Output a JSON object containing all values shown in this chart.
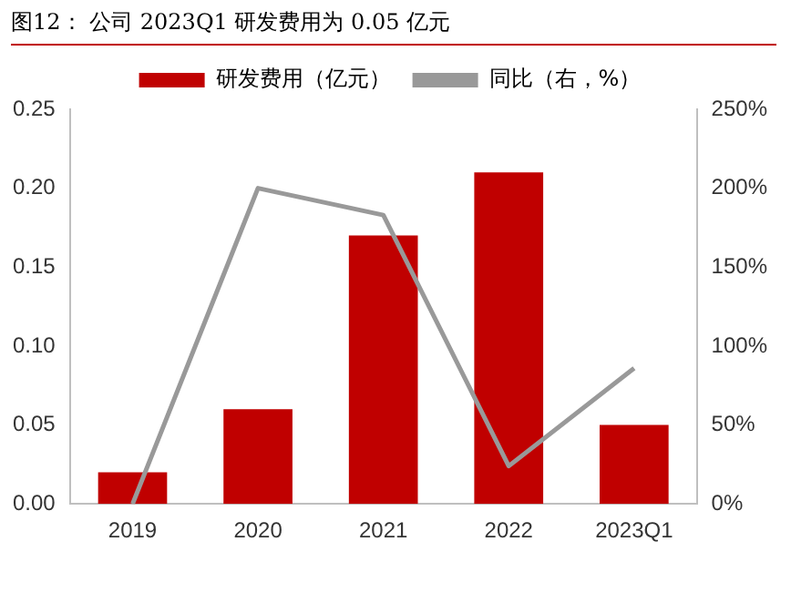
{
  "chart_data": {
    "type": "bar",
    "title": "图12：  公司 2023Q1 研发费用为 0.05 亿元",
    "categories": [
      "2019",
      "2020",
      "2021",
      "2022",
      "2023Q1"
    ],
    "series": [
      {
        "name": "研发费用（亿元）",
        "color": "#c00000",
        "values": [
          0.02,
          0.06,
          0.17,
          0.21,
          0.05
        ]
      },
      {
        "name": "同比（右，%）",
        "type": "line",
        "axis": "y2",
        "color": "#999999",
        "values": [
          0,
          200,
          183,
          24,
          86
        ]
      }
    ],
    "ylim": [
      0,
      0.25
    ],
    "yticks": [
      {
        "value": 0,
        "label": "0.00"
      },
      {
        "value": 0.05,
        "label": "0.05"
      },
      {
        "value": 0.1,
        "label": "0.10"
      },
      {
        "value": 0.15,
        "label": "0.15"
      },
      {
        "value": 0.2,
        "label": "0.20"
      },
      {
        "value": 0.25,
        "label": "0.25"
      }
    ],
    "y2lim": [
      0,
      250
    ],
    "y2ticks": [
      {
        "value": 0,
        "label": "0%"
      },
      {
        "value": 50,
        "label": "50%"
      },
      {
        "value": 100,
        "label": "100%"
      },
      {
        "value": 150,
        "label": "150%"
      },
      {
        "value": 200,
        "label": "200%"
      },
      {
        "value": 250,
        "label": "250%"
      }
    ],
    "grid": false,
    "legend": "top",
    "marker": "none"
  }
}
